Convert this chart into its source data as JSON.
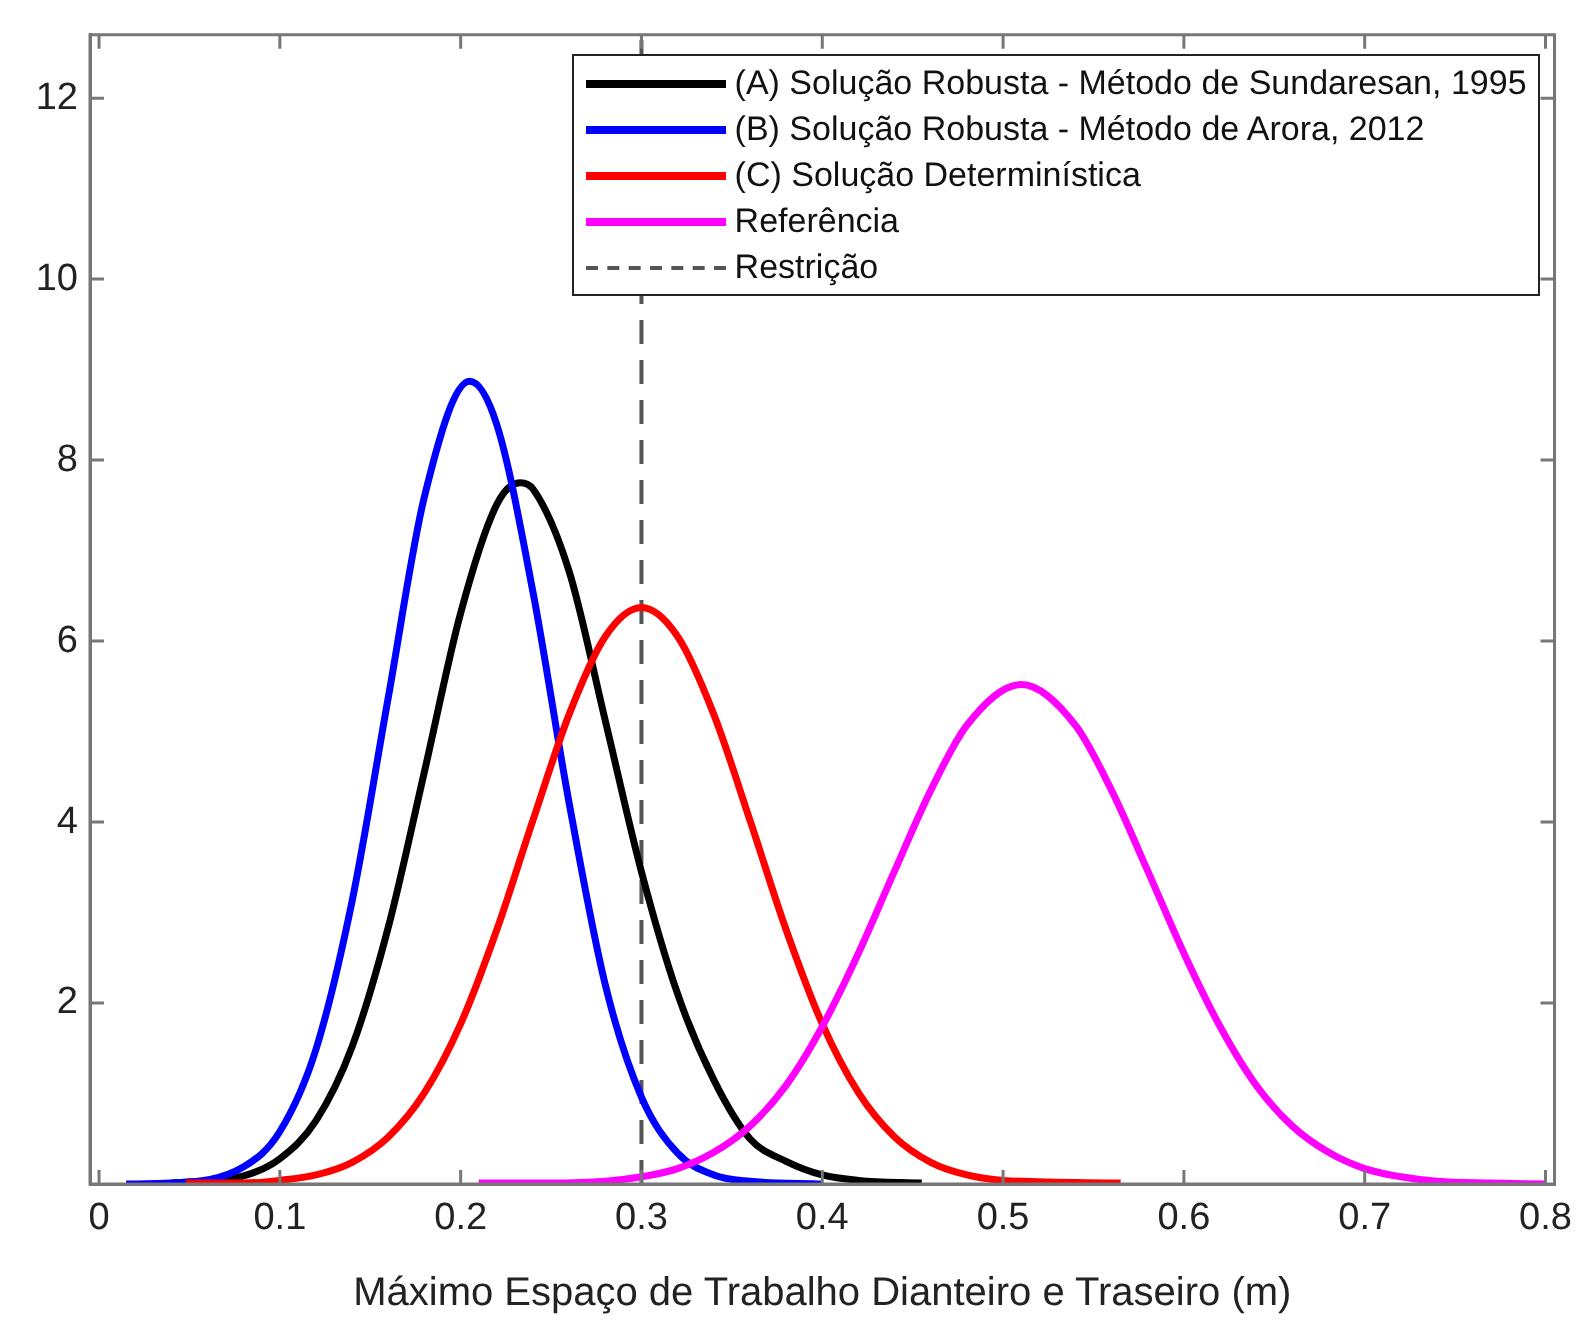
{
  "chart_data": {
    "type": "line",
    "xlabel": "Máximo Espaço de Trabalho Dianteiro e Traseiro (m)",
    "xlim": [
      -0.005,
      0.805
    ],
    "ylim": [
      0,
      12.7
    ],
    "xticks": [
      0,
      0.1,
      0.2,
      0.3,
      0.4,
      0.5,
      0.6,
      0.7,
      0.8
    ],
    "yticks": [
      2,
      4,
      6,
      8,
      10,
      12
    ],
    "grid": false,
    "legend": "top right",
    "marker": "none",
    "line_style": "solid",
    "series": [
      {
        "name": "(A) Solução Robusta - Método de Sundaresan, 1995",
        "color": "#000000",
        "x": [
          0.04,
          0.08,
          0.1,
          0.12,
          0.14,
          0.16,
          0.18,
          0.2,
          0.22,
          0.233,
          0.24,
          0.26,
          0.28,
          0.3,
          0.32,
          0.34,
          0.36,
          0.38,
          0.4,
          0.42,
          0.455
        ],
        "values": [
          0.01,
          0.09,
          0.28,
          0.7,
          1.52,
          2.84,
          4.56,
          6.31,
          7.51,
          7.75,
          7.68,
          6.77,
          5.12,
          3.45,
          2.1,
          1.15,
          0.5,
          0.25,
          0.1,
          0.04,
          0.01
        ]
      },
      {
        "name": "(B) Solução Robusta - Método de Arora, 2012",
        "color": "#0000ff",
        "x": [
          0.015,
          0.04,
          0.08,
          0.1,
          0.12,
          0.14,
          0.16,
          0.18,
          0.205,
          0.22,
          0.24,
          0.26,
          0.28,
          0.3,
          0.32,
          0.34,
          0.36,
          0.4
        ],
        "values": [
          0,
          0.01,
          0.19,
          0.58,
          1.49,
          3.13,
          5.38,
          7.6,
          8.87,
          8.39,
          6.54,
          4.21,
          2.2,
          0.96,
          0.34,
          0.1,
          0.03,
          0
        ]
      },
      {
        "name": "(C) Solução Determinística",
        "color": "#ff0000",
        "x": [
          0.048,
          0.08,
          0.1,
          0.12,
          0.14,
          0.16,
          0.18,
          0.2,
          0.22,
          0.24,
          0.26,
          0.28,
          0.3,
          0.32,
          0.34,
          0.36,
          0.38,
          0.4,
          0.42,
          0.44,
          0.46,
          0.48,
          0.5,
          0.565
        ],
        "values": [
          0.01,
          0.01,
          0.04,
          0.1,
          0.24,
          0.52,
          1.01,
          1.77,
          2.81,
          4.02,
          5.19,
          6.05,
          6.37,
          6.05,
          5.19,
          4.02,
          2.81,
          1.77,
          1.01,
          0.52,
          0.24,
          0.1,
          0.04,
          0.01
        ]
      },
      {
        "name": "Referência",
        "color": "#ff00ff",
        "x": [
          0.21,
          0.25,
          0.28,
          0.3,
          0.32,
          0.34,
          0.36,
          0.38,
          0.4,
          0.42,
          0.44,
          0.46,
          0.48,
          0.51,
          0.54,
          0.56,
          0.58,
          0.6,
          0.62,
          0.64,
          0.66,
          0.68,
          0.7,
          0.72,
          0.74,
          0.77,
          0.8
        ],
        "values": [
          0.01,
          0.01,
          0.03,
          0.08,
          0.17,
          0.35,
          0.64,
          1.09,
          1.74,
          2.55,
          3.46,
          4.35,
          5.07,
          5.52,
          5.07,
          4.35,
          3.46,
          2.55,
          1.74,
          1.09,
          0.64,
          0.35,
          0.17,
          0.08,
          0.03,
          0.01,
          0
        ]
      }
    ],
    "ref_lines": [
      {
        "axis": "x",
        "value": 0.3,
        "label": "Restrição",
        "color": "#555555",
        "line_style": "dashed"
      }
    ]
  }
}
